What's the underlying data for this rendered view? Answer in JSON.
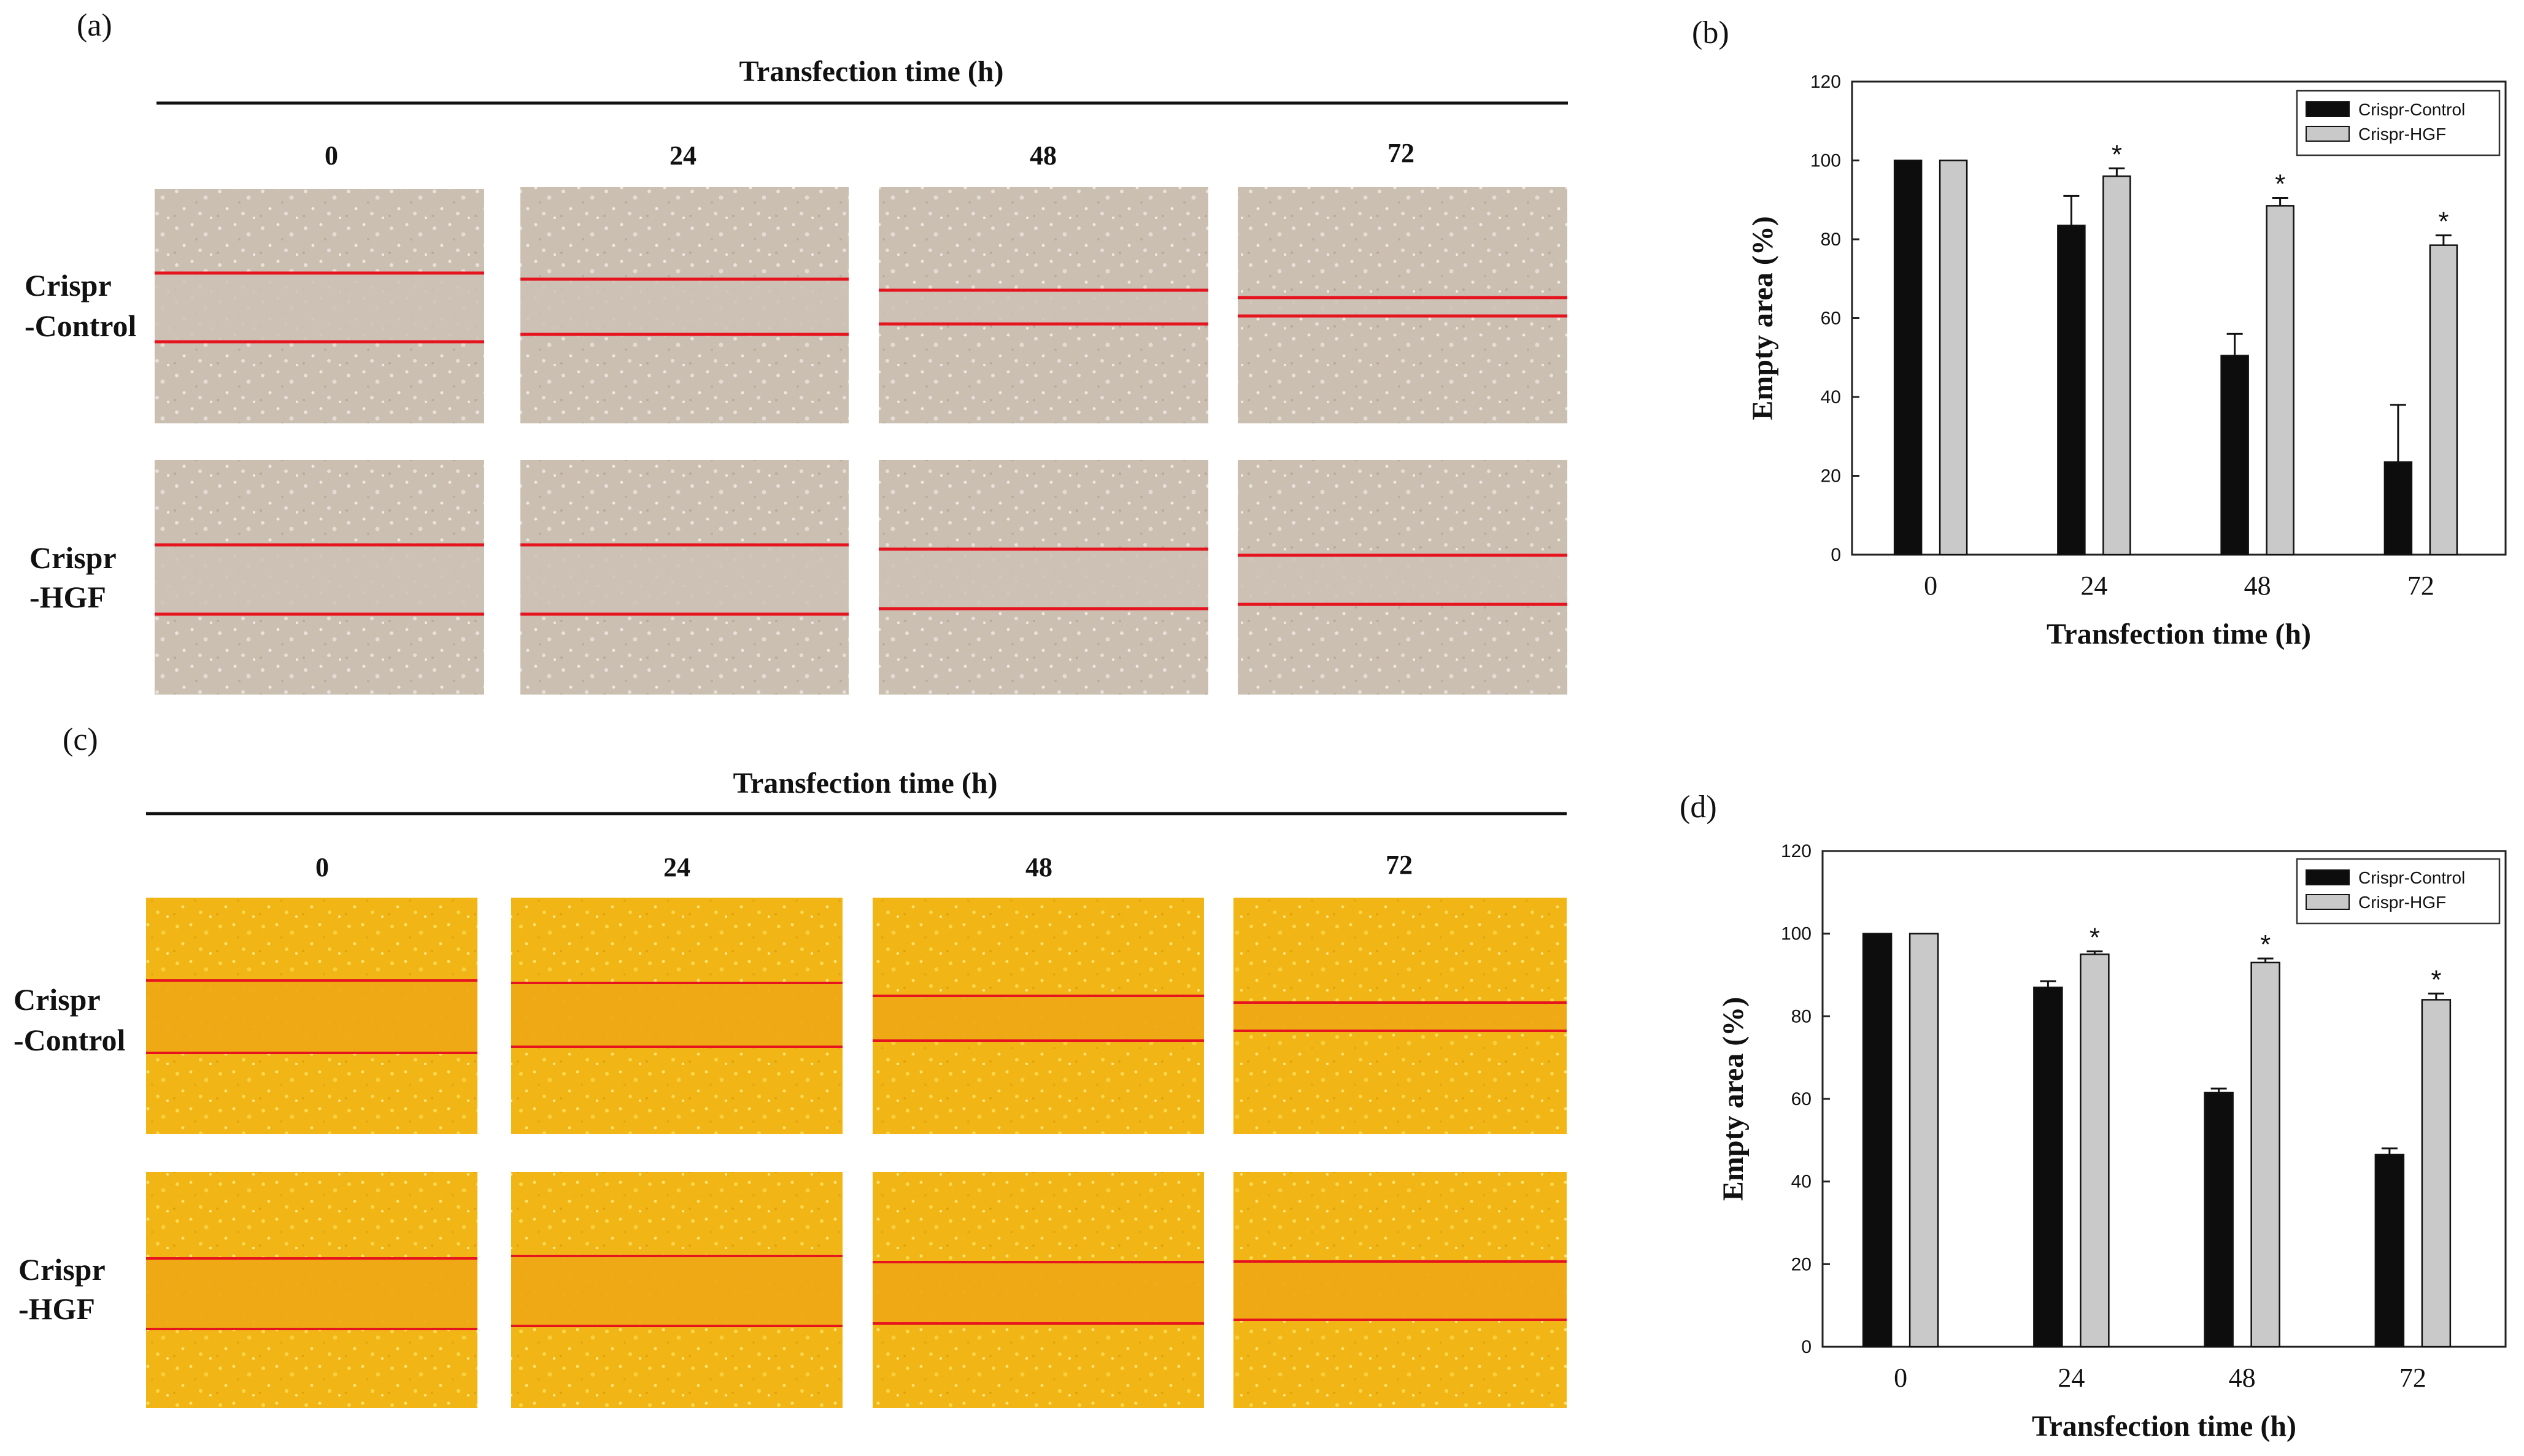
{
  "panels": {
    "a": "(a)",
    "b": "(b)",
    "c": "(c)",
    "d": "(d)"
  },
  "micrographs": {
    "top": {
      "header": "Transfection time (h)",
      "timepoints": [
        "0",
        "24",
        "48",
        "72"
      ],
      "rows": [
        {
          "label_line1": "Crispr",
          "label_line2": "-Control"
        },
        {
          "label_line1": "Crispr",
          "label_line2": "-HGF"
        }
      ]
    },
    "bottom": {
      "header": "Transfection time (h)",
      "timepoints": [
        "0",
        "24",
        "48",
        "72"
      ],
      "rows": [
        {
          "label_line1": "Crispr",
          "label_line2": "-Control"
        },
        {
          "label_line1": "Crispr",
          "label_line2": "-HGF"
        }
      ]
    }
  },
  "colors": {
    "micrograph_top_bg": "#cbbfb2",
    "micrograph_bottom_bg": "#f2b516",
    "scratch_line": "#e6141e",
    "control_bar": "#0d0d0d",
    "hgf_bar": "#c9c9c9"
  },
  "chart_data": [
    {
      "panel": "b",
      "type": "bar",
      "categories": [
        "0",
        "24",
        "48",
        "72"
      ],
      "series": [
        {
          "name": "Crispr-Control",
          "values": [
            100,
            83.5,
            50.5,
            23.5
          ],
          "errors": [
            0,
            7.5,
            5.5,
            14.5
          ]
        },
        {
          "name": "Crispr-HGF",
          "values": [
            100,
            96,
            88.5,
            78.5
          ],
          "errors": [
            0,
            2,
            2,
            2.5
          ]
        }
      ],
      "significance": [
        "",
        "*",
        "*",
        "*"
      ],
      "xlabel": "Transfection time (h)",
      "ylabel": "Empty area (%)",
      "ylim": [
        0,
        120
      ],
      "yticks": [
        "0",
        "20",
        "40",
        "60",
        "80",
        "100",
        "120"
      ],
      "legend_position": "top-right"
    },
    {
      "panel": "d",
      "type": "bar",
      "categories": [
        "0",
        "24",
        "48",
        "72"
      ],
      "series": [
        {
          "name": "Crispr-Control",
          "values": [
            100,
            87,
            61.5,
            46.5
          ],
          "errors": [
            0,
            1.5,
            1,
            1.5
          ]
        },
        {
          "name": "Crispr-HGF",
          "values": [
            100,
            95,
            93,
            84
          ],
          "errors": [
            0,
            0.7,
            1,
            1.5
          ]
        }
      ],
      "significance": [
        "",
        "*",
        "*",
        "*"
      ],
      "xlabel": "Transfection time (h)",
      "ylabel": "Empty area (%)",
      "ylim": [
        0,
        120
      ],
      "yticks": [
        "0",
        "20",
        "40",
        "60",
        "80",
        "100",
        "120"
      ],
      "legend_position": "top-right"
    }
  ]
}
